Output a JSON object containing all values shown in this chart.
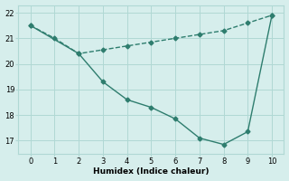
{
  "line1_x": [
    0,
    1,
    2,
    3,
    4,
    5,
    6,
    7,
    8,
    9,
    10
  ],
  "line1_y": [
    21.5,
    21.0,
    20.4,
    20.55,
    20.7,
    20.85,
    21.0,
    21.15,
    21.3,
    21.6,
    21.9
  ],
  "line2_x": [
    0,
    2,
    3,
    4,
    5,
    6,
    7,
    8,
    9,
    10
  ],
  "line2_y": [
    21.5,
    20.4,
    19.3,
    18.6,
    18.3,
    17.85,
    17.1,
    16.85,
    17.35,
    21.9
  ],
  "color": "#2e7d6e",
  "xlabel": "Humidex (Indice chaleur)",
  "xlim": [
    -0.5,
    10.5
  ],
  "ylim": [
    16.5,
    22.3
  ],
  "yticks": [
    17,
    18,
    19,
    20,
    21,
    22
  ],
  "xticks": [
    0,
    1,
    2,
    3,
    4,
    5,
    6,
    7,
    8,
    9,
    10
  ],
  "bg_color": "#d6eeec",
  "grid_color": "#b0d8d4",
  "marker": "D",
  "marker_size": 2.5,
  "line_width": 1.0
}
